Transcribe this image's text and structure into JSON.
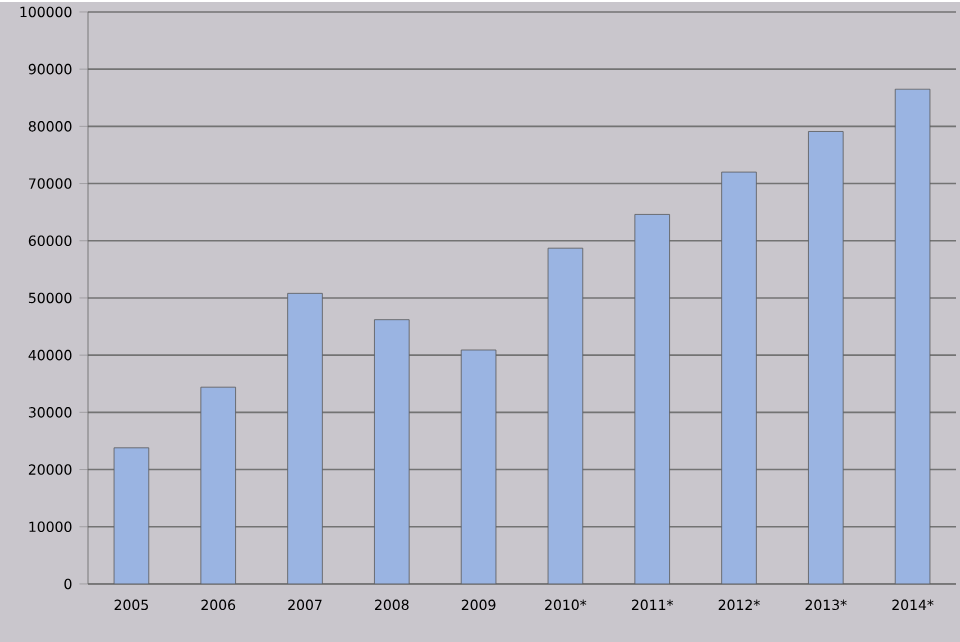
{
  "chart_data": {
    "type": "bar",
    "categories": [
      "2005",
      "2006",
      "2007",
      "2008",
      "2009",
      "2010*",
      "2011*",
      "2012*",
      "2013*",
      "2014*"
    ],
    "values": [
      23800,
      34400,
      50800,
      46200,
      40900,
      58700,
      64600,
      72000,
      79100,
      86500
    ],
    "color": "#9ab4e2",
    "ylim": [
      0,
      100000
    ],
    "yticks": [
      0,
      10000,
      20000,
      30000,
      40000,
      50000,
      60000,
      70000,
      80000,
      90000,
      100000
    ],
    "grid": "y"
  }
}
